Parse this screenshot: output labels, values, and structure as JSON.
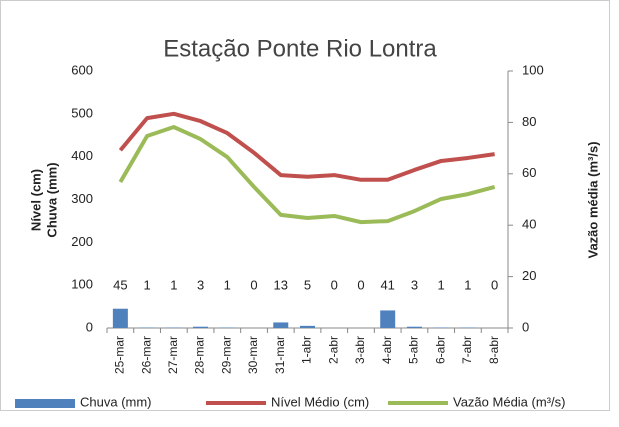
{
  "chart_data": {
    "type": "bar",
    "title": "Estação Ponte Rio Lontra",
    "y_label": [
      "Nível (cm)",
      "Chuva (mm)"
    ],
    "y2_label": "Vazão média (m³/s)",
    "categories": [
      "25-mar",
      "26-mar",
      "27-mar",
      "28-mar",
      "29-mar",
      "30-mar",
      "31-mar",
      "1-abr",
      "2-abr",
      "3-abr",
      "4-abr",
      "5-abr",
      "6-abr",
      "7-abr",
      "8-abr"
    ],
    "series": [
      {
        "name": "Chuva (mm)",
        "type": "bar",
        "color": "#4f81bd",
        "values": [
          45,
          1,
          1,
          3,
          1,
          0,
          13,
          5,
          0,
          0,
          41,
          3,
          1,
          1,
          0
        ]
      },
      {
        "name": "Nível Médio (cm)",
        "type": "line",
        "color": "#c0504d",
        "values": [
          415,
          490,
          500,
          483,
          455,
          409,
          357,
          353,
          357,
          346,
          346,
          369,
          390,
          397,
          406
        ]
      },
      {
        "name": "Vazão Média (m³/s)",
        "type": "line",
        "color": "#9bbb59",
        "axis": "y2",
        "values": [
          56.8,
          74.7,
          78.2,
          73.5,
          66.5,
          54.9,
          44,
          42.8,
          43.6,
          41.2,
          41.6,
          45.5,
          50.2,
          52.1,
          54.9
        ]
      }
    ],
    "ylim": [
      0,
      600
    ],
    "yticks": [
      0,
      100,
      200,
      300,
      400,
      500,
      600
    ],
    "y2lim": [
      0,
      100
    ],
    "y2ticks": [
      0,
      20,
      40,
      60,
      80,
      100
    ],
    "grid": false,
    "legend": "bottom"
  }
}
